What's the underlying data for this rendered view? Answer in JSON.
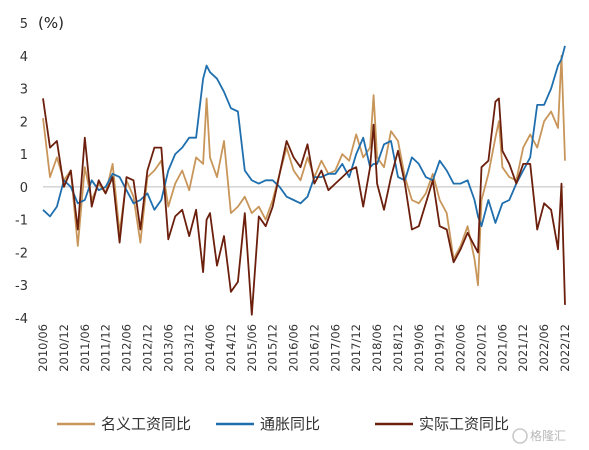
{
  "chart_data": {
    "type": "line",
    "unit_label": "(%)",
    "ylim": [
      -4,
      5
    ],
    "yticks": [
      5,
      4,
      3,
      2,
      1,
      0,
      -1,
      -2,
      -3,
      -4
    ],
    "x_start": "2010-06",
    "x_end": "2022-12",
    "xtick_labels": [
      "2010/06",
      "2010/12",
      "2011/06",
      "2011/12",
      "2012/06",
      "2012/12",
      "2013/06",
      "2013/12",
      "2014/06",
      "2014/12",
      "2015/06",
      "2015/12",
      "2016/06",
      "2016/12",
      "2017/06",
      "2017/12",
      "2018/06",
      "2018/12",
      "2019/06",
      "2019/12",
      "2020/06",
      "2020/12",
      "2021/06",
      "2021/12",
      "2022/06",
      "2022/12"
    ],
    "legend_position": "bottom",
    "series": [
      {
        "name": "名义工资同比",
        "color": "#c8965a",
        "values": [
          {
            "x": "2010-06",
            "y": 2.1
          },
          {
            "x": "2010-08",
            "y": 0.3
          },
          {
            "x": "2010-10",
            "y": 0.9
          },
          {
            "x": "2010-12",
            "y": 0.2
          },
          {
            "x": "2011-02",
            "y": 0.5
          },
          {
            "x": "2011-04",
            "y": -1.8
          },
          {
            "x": "2011-06",
            "y": 0.6
          },
          {
            "x": "2011-08",
            "y": -0.4
          },
          {
            "x": "2011-10",
            "y": 0.1
          },
          {
            "x": "2011-12",
            "y": -0.2
          },
          {
            "x": "2012-02",
            "y": 0.7
          },
          {
            "x": "2012-04",
            "y": -1.4
          },
          {
            "x": "2012-06",
            "y": 0.2
          },
          {
            "x": "2012-08",
            "y": -0.3
          },
          {
            "x": "2012-10",
            "y": -1.7
          },
          {
            "x": "2012-12",
            "y": 0.3
          },
          {
            "x": "2013-02",
            "y": 0.5
          },
          {
            "x": "2013-04",
            "y": 0.8
          },
          {
            "x": "2013-06",
            "y": -0.6
          },
          {
            "x": "2013-08",
            "y": 0.1
          },
          {
            "x": "2013-10",
            "y": 0.5
          },
          {
            "x": "2013-12",
            "y": -0.1
          },
          {
            "x": "2014-02",
            "y": 0.9
          },
          {
            "x": "2014-04",
            "y": 0.7
          },
          {
            "x": "2014-05",
            "y": 2.7
          },
          {
            "x": "2014-06",
            "y": 0.9
          },
          {
            "x": "2014-08",
            "y": 0.3
          },
          {
            "x": "2014-10",
            "y": 1.4
          },
          {
            "x": "2014-12",
            "y": -0.8
          },
          {
            "x": "2015-02",
            "y": -0.6
          },
          {
            "x": "2015-04",
            "y": -0.3
          },
          {
            "x": "2015-06",
            "y": -0.8
          },
          {
            "x": "2015-08",
            "y": -0.6
          },
          {
            "x": "2015-10",
            "y": -1.0
          },
          {
            "x": "2015-12",
            "y": -0.4
          },
          {
            "x": "2016-02",
            "y": 0.4
          },
          {
            "x": "2016-04",
            "y": 1.2
          },
          {
            "x": "2016-06",
            "y": 0.5
          },
          {
            "x": "2016-08",
            "y": 0.2
          },
          {
            "x": "2016-10",
            "y": 0.9
          },
          {
            "x": "2016-12",
            "y": 0.3
          },
          {
            "x": "2017-02",
            "y": 0.8
          },
          {
            "x": "2017-04",
            "y": 0.4
          },
          {
            "x": "2017-06",
            "y": 0.5
          },
          {
            "x": "2017-08",
            "y": 1.0
          },
          {
            "x": "2017-10",
            "y": 0.8
          },
          {
            "x": "2017-12",
            "y": 1.6
          },
          {
            "x": "2018-02",
            "y": 0.9
          },
          {
            "x": "2018-04",
            "y": 1.2
          },
          {
            "x": "2018-05",
            "y": 2.8
          },
          {
            "x": "2018-06",
            "y": 0.9
          },
          {
            "x": "2018-08",
            "y": 0.6
          },
          {
            "x": "2018-10",
            "y": 1.7
          },
          {
            "x": "2018-12",
            "y": 1.4
          },
          {
            "x": "2019-02",
            "y": 0.3
          },
          {
            "x": "2019-04",
            "y": -0.4
          },
          {
            "x": "2019-06",
            "y": -0.5
          },
          {
            "x": "2019-08",
            "y": -0.2
          },
          {
            "x": "2019-10",
            "y": 0.4
          },
          {
            "x": "2019-12",
            "y": -0.4
          },
          {
            "x": "2020-02",
            "y": -0.8
          },
          {
            "x": "2020-04",
            "y": -2.2
          },
          {
            "x": "2020-06",
            "y": -1.8
          },
          {
            "x": "2020-08",
            "y": -1.2
          },
          {
            "x": "2020-10",
            "y": -2.2
          },
          {
            "x": "2020-11",
            "y": -3.0
          },
          {
            "x": "2020-12",
            "y": -0.4
          },
          {
            "x": "2021-02",
            "y": 0.4
          },
          {
            "x": "2021-04",
            "y": 1.5
          },
          {
            "x": "2021-05",
            "y": 2.0
          },
          {
            "x": "2021-06",
            "y": 0.6
          },
          {
            "x": "2021-08",
            "y": 0.3
          },
          {
            "x": "2021-10",
            "y": 0.2
          },
          {
            "x": "2021-12",
            "y": 1.2
          },
          {
            "x": "2022-02",
            "y": 1.6
          },
          {
            "x": "2022-04",
            "y": 1.2
          },
          {
            "x": "2022-06",
            "y": 2.0
          },
          {
            "x": "2022-08",
            "y": 2.3
          },
          {
            "x": "2022-10",
            "y": 1.8
          },
          {
            "x": "2022-11",
            "y": 4.0
          },
          {
            "x": "2022-12",
            "y": 0.8
          }
        ]
      },
      {
        "name": "通胀同比",
        "color": "#1f6fae",
        "values": [
          {
            "x": "2010-06",
            "y": -0.7
          },
          {
            "x": "2010-08",
            "y": -0.9
          },
          {
            "x": "2010-10",
            "y": -0.6
          },
          {
            "x": "2010-12",
            "y": 0.2
          },
          {
            "x": "2011-02",
            "y": 0.0
          },
          {
            "x": "2011-04",
            "y": -0.5
          },
          {
            "x": "2011-06",
            "y": -0.4
          },
          {
            "x": "2011-08",
            "y": 0.2
          },
          {
            "x": "2011-10",
            "y": -0.1
          },
          {
            "x": "2011-12",
            "y": 0.0
          },
          {
            "x": "2012-02",
            "y": 0.4
          },
          {
            "x": "2012-04",
            "y": 0.3
          },
          {
            "x": "2012-06",
            "y": -0.1
          },
          {
            "x": "2012-08",
            "y": -0.5
          },
          {
            "x": "2012-10",
            "y": -0.4
          },
          {
            "x": "2012-12",
            "y": -0.2
          },
          {
            "x": "2013-02",
            "y": -0.7
          },
          {
            "x": "2013-04",
            "y": -0.4
          },
          {
            "x": "2013-06",
            "y": 0.5
          },
          {
            "x": "2013-08",
            "y": 1.0
          },
          {
            "x": "2013-10",
            "y": 1.2
          },
          {
            "x": "2013-12",
            "y": 1.5
          },
          {
            "x": "2014-02",
            "y": 1.5
          },
          {
            "x": "2014-04",
            "y": 3.3
          },
          {
            "x": "2014-05",
            "y": 3.7
          },
          {
            "x": "2014-06",
            "y": 3.5
          },
          {
            "x": "2014-08",
            "y": 3.3
          },
          {
            "x": "2014-10",
            "y": 2.9
          },
          {
            "x": "2014-12",
            "y": 2.4
          },
          {
            "x": "2015-02",
            "y": 2.3
          },
          {
            "x": "2015-04",
            "y": 0.5
          },
          {
            "x": "2015-06",
            "y": 0.2
          },
          {
            "x": "2015-08",
            "y": 0.1
          },
          {
            "x": "2015-10",
            "y": 0.2
          },
          {
            "x": "2015-12",
            "y": 0.2
          },
          {
            "x": "2016-02",
            "y": 0.0
          },
          {
            "x": "2016-04",
            "y": -0.3
          },
          {
            "x": "2016-06",
            "y": -0.4
          },
          {
            "x": "2016-08",
            "y": -0.5
          },
          {
            "x": "2016-10",
            "y": -0.3
          },
          {
            "x": "2016-12",
            "y": 0.3
          },
          {
            "x": "2017-02",
            "y": 0.3
          },
          {
            "x": "2017-04",
            "y": 0.4
          },
          {
            "x": "2017-06",
            "y": 0.4
          },
          {
            "x": "2017-08",
            "y": 0.7
          },
          {
            "x": "2017-10",
            "y": 0.3
          },
          {
            "x": "2017-12",
            "y": 1.0
          },
          {
            "x": "2018-02",
            "y": 1.5
          },
          {
            "x": "2018-04",
            "y": 0.6
          },
          {
            "x": "2018-05",
            "y": 0.7
          },
          {
            "x": "2018-06",
            "y": 0.7
          },
          {
            "x": "2018-08",
            "y": 1.3
          },
          {
            "x": "2018-10",
            "y": 1.4
          },
          {
            "x": "2018-12",
            "y": 0.3
          },
          {
            "x": "2019-02",
            "y": 0.2
          },
          {
            "x": "2019-04",
            "y": 0.9
          },
          {
            "x": "2019-06",
            "y": 0.7
          },
          {
            "x": "2019-08",
            "y": 0.3
          },
          {
            "x": "2019-10",
            "y": 0.2
          },
          {
            "x": "2019-12",
            "y": 0.8
          },
          {
            "x": "2020-02",
            "y": 0.5
          },
          {
            "x": "2020-04",
            "y": 0.1
          },
          {
            "x": "2020-06",
            "y": 0.1
          },
          {
            "x": "2020-08",
            "y": 0.2
          },
          {
            "x": "2020-10",
            "y": -0.4
          },
          {
            "x": "2020-11",
            "y": -0.9
          },
          {
            "x": "2020-12",
            "y": -1.2
          },
          {
            "x": "2021-02",
            "y": -0.4
          },
          {
            "x": "2021-04",
            "y": -1.1
          },
          {
            "x": "2021-05",
            "y": -0.8
          },
          {
            "x": "2021-06",
            "y": -0.5
          },
          {
            "x": "2021-08",
            "y": -0.4
          },
          {
            "x": "2021-10",
            "y": 0.1
          },
          {
            "x": "2021-12",
            "y": 0.5
          },
          {
            "x": "2022-02",
            "y": 0.9
          },
          {
            "x": "2022-04",
            "y": 2.5
          },
          {
            "x": "2022-06",
            "y": 2.5
          },
          {
            "x": "2022-08",
            "y": 3.0
          },
          {
            "x": "2022-10",
            "y": 3.7
          },
          {
            "x": "2022-11",
            "y": 3.9
          },
          {
            "x": "2022-12",
            "y": 4.3
          }
        ]
      },
      {
        "name": "实际工资同比",
        "color": "#6b1f0c",
        "values": [
          {
            "x": "2010-06",
            "y": 2.7
          },
          {
            "x": "2010-08",
            "y": 1.2
          },
          {
            "x": "2010-10",
            "y": 1.4
          },
          {
            "x": "2010-12",
            "y": 0.0
          },
          {
            "x": "2011-02",
            "y": 0.5
          },
          {
            "x": "2011-04",
            "y": -1.3
          },
          {
            "x": "2011-06",
            "y": 1.5
          },
          {
            "x": "2011-08",
            "y": -0.6
          },
          {
            "x": "2011-10",
            "y": 0.2
          },
          {
            "x": "2011-12",
            "y": -0.2
          },
          {
            "x": "2012-02",
            "y": 0.3
          },
          {
            "x": "2012-04",
            "y": -1.7
          },
          {
            "x": "2012-06",
            "y": 0.3
          },
          {
            "x": "2012-08",
            "y": 0.2
          },
          {
            "x": "2012-10",
            "y": -1.3
          },
          {
            "x": "2012-12",
            "y": 0.5
          },
          {
            "x": "2013-02",
            "y": 1.2
          },
          {
            "x": "2013-04",
            "y": 1.2
          },
          {
            "x": "2013-06",
            "y": -1.6
          },
          {
            "x": "2013-08",
            "y": -0.9
          },
          {
            "x": "2013-10",
            "y": -0.7
          },
          {
            "x": "2013-12",
            "y": -1.5
          },
          {
            "x": "2014-02",
            "y": -0.7
          },
          {
            "x": "2014-04",
            "y": -2.6
          },
          {
            "x": "2014-05",
            "y": -1.0
          },
          {
            "x": "2014-06",
            "y": -0.8
          },
          {
            "x": "2014-08",
            "y": -2.4
          },
          {
            "x": "2014-10",
            "y": -1.5
          },
          {
            "x": "2014-12",
            "y": -3.2
          },
          {
            "x": "2015-02",
            "y": -2.9
          },
          {
            "x": "2015-04",
            "y": -0.8
          },
          {
            "x": "2015-06",
            "y": -3.9
          },
          {
            "x": "2015-08",
            "y": -0.9
          },
          {
            "x": "2015-10",
            "y": -1.2
          },
          {
            "x": "2015-12",
            "y": -0.6
          },
          {
            "x": "2016-02",
            "y": 0.4
          },
          {
            "x": "2016-04",
            "y": 1.4
          },
          {
            "x": "2016-06",
            "y": 0.9
          },
          {
            "x": "2016-08",
            "y": 0.6
          },
          {
            "x": "2016-10",
            "y": 1.3
          },
          {
            "x": "2016-12",
            "y": 0.1
          },
          {
            "x": "2017-02",
            "y": 0.5
          },
          {
            "x": "2017-04",
            "y": -0.1
          },
          {
            "x": "2017-06",
            "y": 0.1
          },
          {
            "x": "2017-08",
            "y": 0.3
          },
          {
            "x": "2017-10",
            "y": 0.5
          },
          {
            "x": "2017-12",
            "y": 0.6
          },
          {
            "x": "2018-02",
            "y": -0.6
          },
          {
            "x": "2018-04",
            "y": 0.6
          },
          {
            "x": "2018-05",
            "y": 1.9
          },
          {
            "x": "2018-06",
            "y": 0.1
          },
          {
            "x": "2018-08",
            "y": -0.7
          },
          {
            "x": "2018-10",
            "y": 0.3
          },
          {
            "x": "2018-12",
            "y": 1.1
          },
          {
            "x": "2019-02",
            "y": 0.1
          },
          {
            "x": "2019-04",
            "y": -1.3
          },
          {
            "x": "2019-06",
            "y": -1.2
          },
          {
            "x": "2019-08",
            "y": -0.5
          },
          {
            "x": "2019-10",
            "y": 0.2
          },
          {
            "x": "2019-12",
            "y": -1.2
          },
          {
            "x": "2020-02",
            "y": -1.3
          },
          {
            "x": "2020-04",
            "y": -2.3
          },
          {
            "x": "2020-06",
            "y": -1.9
          },
          {
            "x": "2020-08",
            "y": -1.4
          },
          {
            "x": "2020-10",
            "y": -1.8
          },
          {
            "x": "2020-11",
            "y": -2.0
          },
          {
            "x": "2020-12",
            "y": 0.6
          },
          {
            "x": "2021-02",
            "y": 0.8
          },
          {
            "x": "2021-04",
            "y": 2.6
          },
          {
            "x": "2021-05",
            "y": 2.7
          },
          {
            "x": "2021-06",
            "y": 1.1
          },
          {
            "x": "2021-08",
            "y": 0.7
          },
          {
            "x": "2021-10",
            "y": 0.1
          },
          {
            "x": "2021-12",
            "y": 0.7
          },
          {
            "x": "2022-02",
            "y": 0.7
          },
          {
            "x": "2022-04",
            "y": -1.3
          },
          {
            "x": "2022-06",
            "y": -0.5
          },
          {
            "x": "2022-08",
            "y": -0.7
          },
          {
            "x": "2022-10",
            "y": -1.9
          },
          {
            "x": "2022-11",
            "y": 0.1
          },
          {
            "x": "2022-12",
            "y": -3.6
          }
        ]
      }
    ]
  },
  "watermark": {
    "text": "格隆汇"
  }
}
